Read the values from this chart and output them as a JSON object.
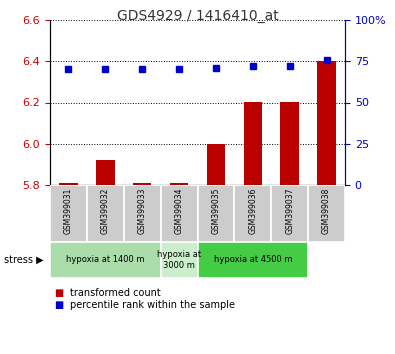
{
  "title": "GDS4929 / 1416410_at",
  "samples": [
    "GSM399031",
    "GSM399032",
    "GSM399033",
    "GSM399034",
    "GSM399035",
    "GSM399036",
    "GSM399037",
    "GSM399038"
  ],
  "bar_values": [
    5.81,
    5.92,
    5.81,
    5.81,
    6.0,
    6.2,
    6.2,
    6.4
  ],
  "blue_values": [
    70.0,
    70.5,
    70.0,
    70.0,
    71.0,
    72.0,
    72.0,
    75.5
  ],
  "baseline": 5.8,
  "ylim_left": [
    5.8,
    6.6
  ],
  "ylim_right": [
    0,
    100
  ],
  "yticks_left": [
    5.8,
    6.0,
    6.2,
    6.4,
    6.6
  ],
  "yticks_right": [
    0,
    25,
    50,
    75,
    100
  ],
  "bar_color": "#bb0000",
  "dot_color": "#0000cc",
  "grid_color": "#000000",
  "groups": [
    {
      "label": "hypoxia at 1400 m",
      "start": 0,
      "end": 3,
      "color": "#aaddaa"
    },
    {
      "label": "hypoxia at\n3000 m",
      "start": 3,
      "end": 4,
      "color": "#cceecc"
    },
    {
      "label": "hypoxia at 4500 m",
      "start": 4,
      "end": 7,
      "color": "#44cc44"
    }
  ],
  "legend_items": [
    {
      "color": "#bb0000",
      "label": "transformed count"
    },
    {
      "color": "#0000cc",
      "label": "percentile rank within the sample"
    }
  ],
  "left_axis_color": "#cc0000",
  "right_axis_color": "#0000cc",
  "sample_box_color": "#cccccc",
  "title_color": "#333333"
}
